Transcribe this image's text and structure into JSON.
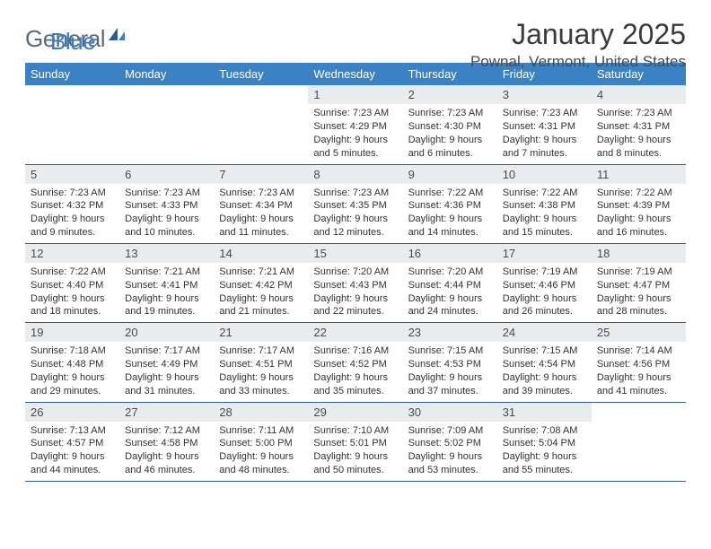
{
  "logo": {
    "text1": "General",
    "text2": "Blue"
  },
  "title": "January 2025",
  "location": "Pownal, Vermont, United States",
  "colors": {
    "header_bg": "#3b82c4",
    "header_text": "#ffffff",
    "daynum_bg": "#e9ecef",
    "row_border": "#2f5b87",
    "logo_general": "#5a6a78",
    "logo_blue": "#3b7bbf"
  },
  "weekdays": [
    "Sunday",
    "Monday",
    "Tuesday",
    "Wednesday",
    "Thursday",
    "Friday",
    "Saturday"
  ],
  "weeks": [
    [
      {
        "day": "",
        "sunrise": "",
        "sunset": "",
        "daylight": ""
      },
      {
        "day": "",
        "sunrise": "",
        "sunset": "",
        "daylight": ""
      },
      {
        "day": "",
        "sunrise": "",
        "sunset": "",
        "daylight": ""
      },
      {
        "day": "1",
        "sunrise": "Sunrise: 7:23 AM",
        "sunset": "Sunset: 4:29 PM",
        "daylight": "Daylight: 9 hours and 5 minutes."
      },
      {
        "day": "2",
        "sunrise": "Sunrise: 7:23 AM",
        "sunset": "Sunset: 4:30 PM",
        "daylight": "Daylight: 9 hours and 6 minutes."
      },
      {
        "day": "3",
        "sunrise": "Sunrise: 7:23 AM",
        "sunset": "Sunset: 4:31 PM",
        "daylight": "Daylight: 9 hours and 7 minutes."
      },
      {
        "day": "4",
        "sunrise": "Sunrise: 7:23 AM",
        "sunset": "Sunset: 4:31 PM",
        "daylight": "Daylight: 9 hours and 8 minutes."
      }
    ],
    [
      {
        "day": "5",
        "sunrise": "Sunrise: 7:23 AM",
        "sunset": "Sunset: 4:32 PM",
        "daylight": "Daylight: 9 hours and 9 minutes."
      },
      {
        "day": "6",
        "sunrise": "Sunrise: 7:23 AM",
        "sunset": "Sunset: 4:33 PM",
        "daylight": "Daylight: 9 hours and 10 minutes."
      },
      {
        "day": "7",
        "sunrise": "Sunrise: 7:23 AM",
        "sunset": "Sunset: 4:34 PM",
        "daylight": "Daylight: 9 hours and 11 minutes."
      },
      {
        "day": "8",
        "sunrise": "Sunrise: 7:23 AM",
        "sunset": "Sunset: 4:35 PM",
        "daylight": "Daylight: 9 hours and 12 minutes."
      },
      {
        "day": "9",
        "sunrise": "Sunrise: 7:22 AM",
        "sunset": "Sunset: 4:36 PM",
        "daylight": "Daylight: 9 hours and 14 minutes."
      },
      {
        "day": "10",
        "sunrise": "Sunrise: 7:22 AM",
        "sunset": "Sunset: 4:38 PM",
        "daylight": "Daylight: 9 hours and 15 minutes."
      },
      {
        "day": "11",
        "sunrise": "Sunrise: 7:22 AM",
        "sunset": "Sunset: 4:39 PM",
        "daylight": "Daylight: 9 hours and 16 minutes."
      }
    ],
    [
      {
        "day": "12",
        "sunrise": "Sunrise: 7:22 AM",
        "sunset": "Sunset: 4:40 PM",
        "daylight": "Daylight: 9 hours and 18 minutes."
      },
      {
        "day": "13",
        "sunrise": "Sunrise: 7:21 AM",
        "sunset": "Sunset: 4:41 PM",
        "daylight": "Daylight: 9 hours and 19 minutes."
      },
      {
        "day": "14",
        "sunrise": "Sunrise: 7:21 AM",
        "sunset": "Sunset: 4:42 PM",
        "daylight": "Daylight: 9 hours and 21 minutes."
      },
      {
        "day": "15",
        "sunrise": "Sunrise: 7:20 AM",
        "sunset": "Sunset: 4:43 PM",
        "daylight": "Daylight: 9 hours and 22 minutes."
      },
      {
        "day": "16",
        "sunrise": "Sunrise: 7:20 AM",
        "sunset": "Sunset: 4:44 PM",
        "daylight": "Daylight: 9 hours and 24 minutes."
      },
      {
        "day": "17",
        "sunrise": "Sunrise: 7:19 AM",
        "sunset": "Sunset: 4:46 PM",
        "daylight": "Daylight: 9 hours and 26 minutes."
      },
      {
        "day": "18",
        "sunrise": "Sunrise: 7:19 AM",
        "sunset": "Sunset: 4:47 PM",
        "daylight": "Daylight: 9 hours and 28 minutes."
      }
    ],
    [
      {
        "day": "19",
        "sunrise": "Sunrise: 7:18 AM",
        "sunset": "Sunset: 4:48 PM",
        "daylight": "Daylight: 9 hours and 29 minutes."
      },
      {
        "day": "20",
        "sunrise": "Sunrise: 7:17 AM",
        "sunset": "Sunset: 4:49 PM",
        "daylight": "Daylight: 9 hours and 31 minutes."
      },
      {
        "day": "21",
        "sunrise": "Sunrise: 7:17 AM",
        "sunset": "Sunset: 4:51 PM",
        "daylight": "Daylight: 9 hours and 33 minutes."
      },
      {
        "day": "22",
        "sunrise": "Sunrise: 7:16 AM",
        "sunset": "Sunset: 4:52 PM",
        "daylight": "Daylight: 9 hours and 35 minutes."
      },
      {
        "day": "23",
        "sunrise": "Sunrise: 7:15 AM",
        "sunset": "Sunset: 4:53 PM",
        "daylight": "Daylight: 9 hours and 37 minutes."
      },
      {
        "day": "24",
        "sunrise": "Sunrise: 7:15 AM",
        "sunset": "Sunset: 4:54 PM",
        "daylight": "Daylight: 9 hours and 39 minutes."
      },
      {
        "day": "25",
        "sunrise": "Sunrise: 7:14 AM",
        "sunset": "Sunset: 4:56 PM",
        "daylight": "Daylight: 9 hours and 41 minutes."
      }
    ],
    [
      {
        "day": "26",
        "sunrise": "Sunrise: 7:13 AM",
        "sunset": "Sunset: 4:57 PM",
        "daylight": "Daylight: 9 hours and 44 minutes."
      },
      {
        "day": "27",
        "sunrise": "Sunrise: 7:12 AM",
        "sunset": "Sunset: 4:58 PM",
        "daylight": "Daylight: 9 hours and 46 minutes."
      },
      {
        "day": "28",
        "sunrise": "Sunrise: 7:11 AM",
        "sunset": "Sunset: 5:00 PM",
        "daylight": "Daylight: 9 hours and 48 minutes."
      },
      {
        "day": "29",
        "sunrise": "Sunrise: 7:10 AM",
        "sunset": "Sunset: 5:01 PM",
        "daylight": "Daylight: 9 hours and 50 minutes."
      },
      {
        "day": "30",
        "sunrise": "Sunrise: 7:09 AM",
        "sunset": "Sunset: 5:02 PM",
        "daylight": "Daylight: 9 hours and 53 minutes."
      },
      {
        "day": "31",
        "sunrise": "Sunrise: 7:08 AM",
        "sunset": "Sunset: 5:04 PM",
        "daylight": "Daylight: 9 hours and 55 minutes."
      },
      {
        "day": "",
        "sunrise": "",
        "sunset": "",
        "daylight": ""
      }
    ]
  ]
}
